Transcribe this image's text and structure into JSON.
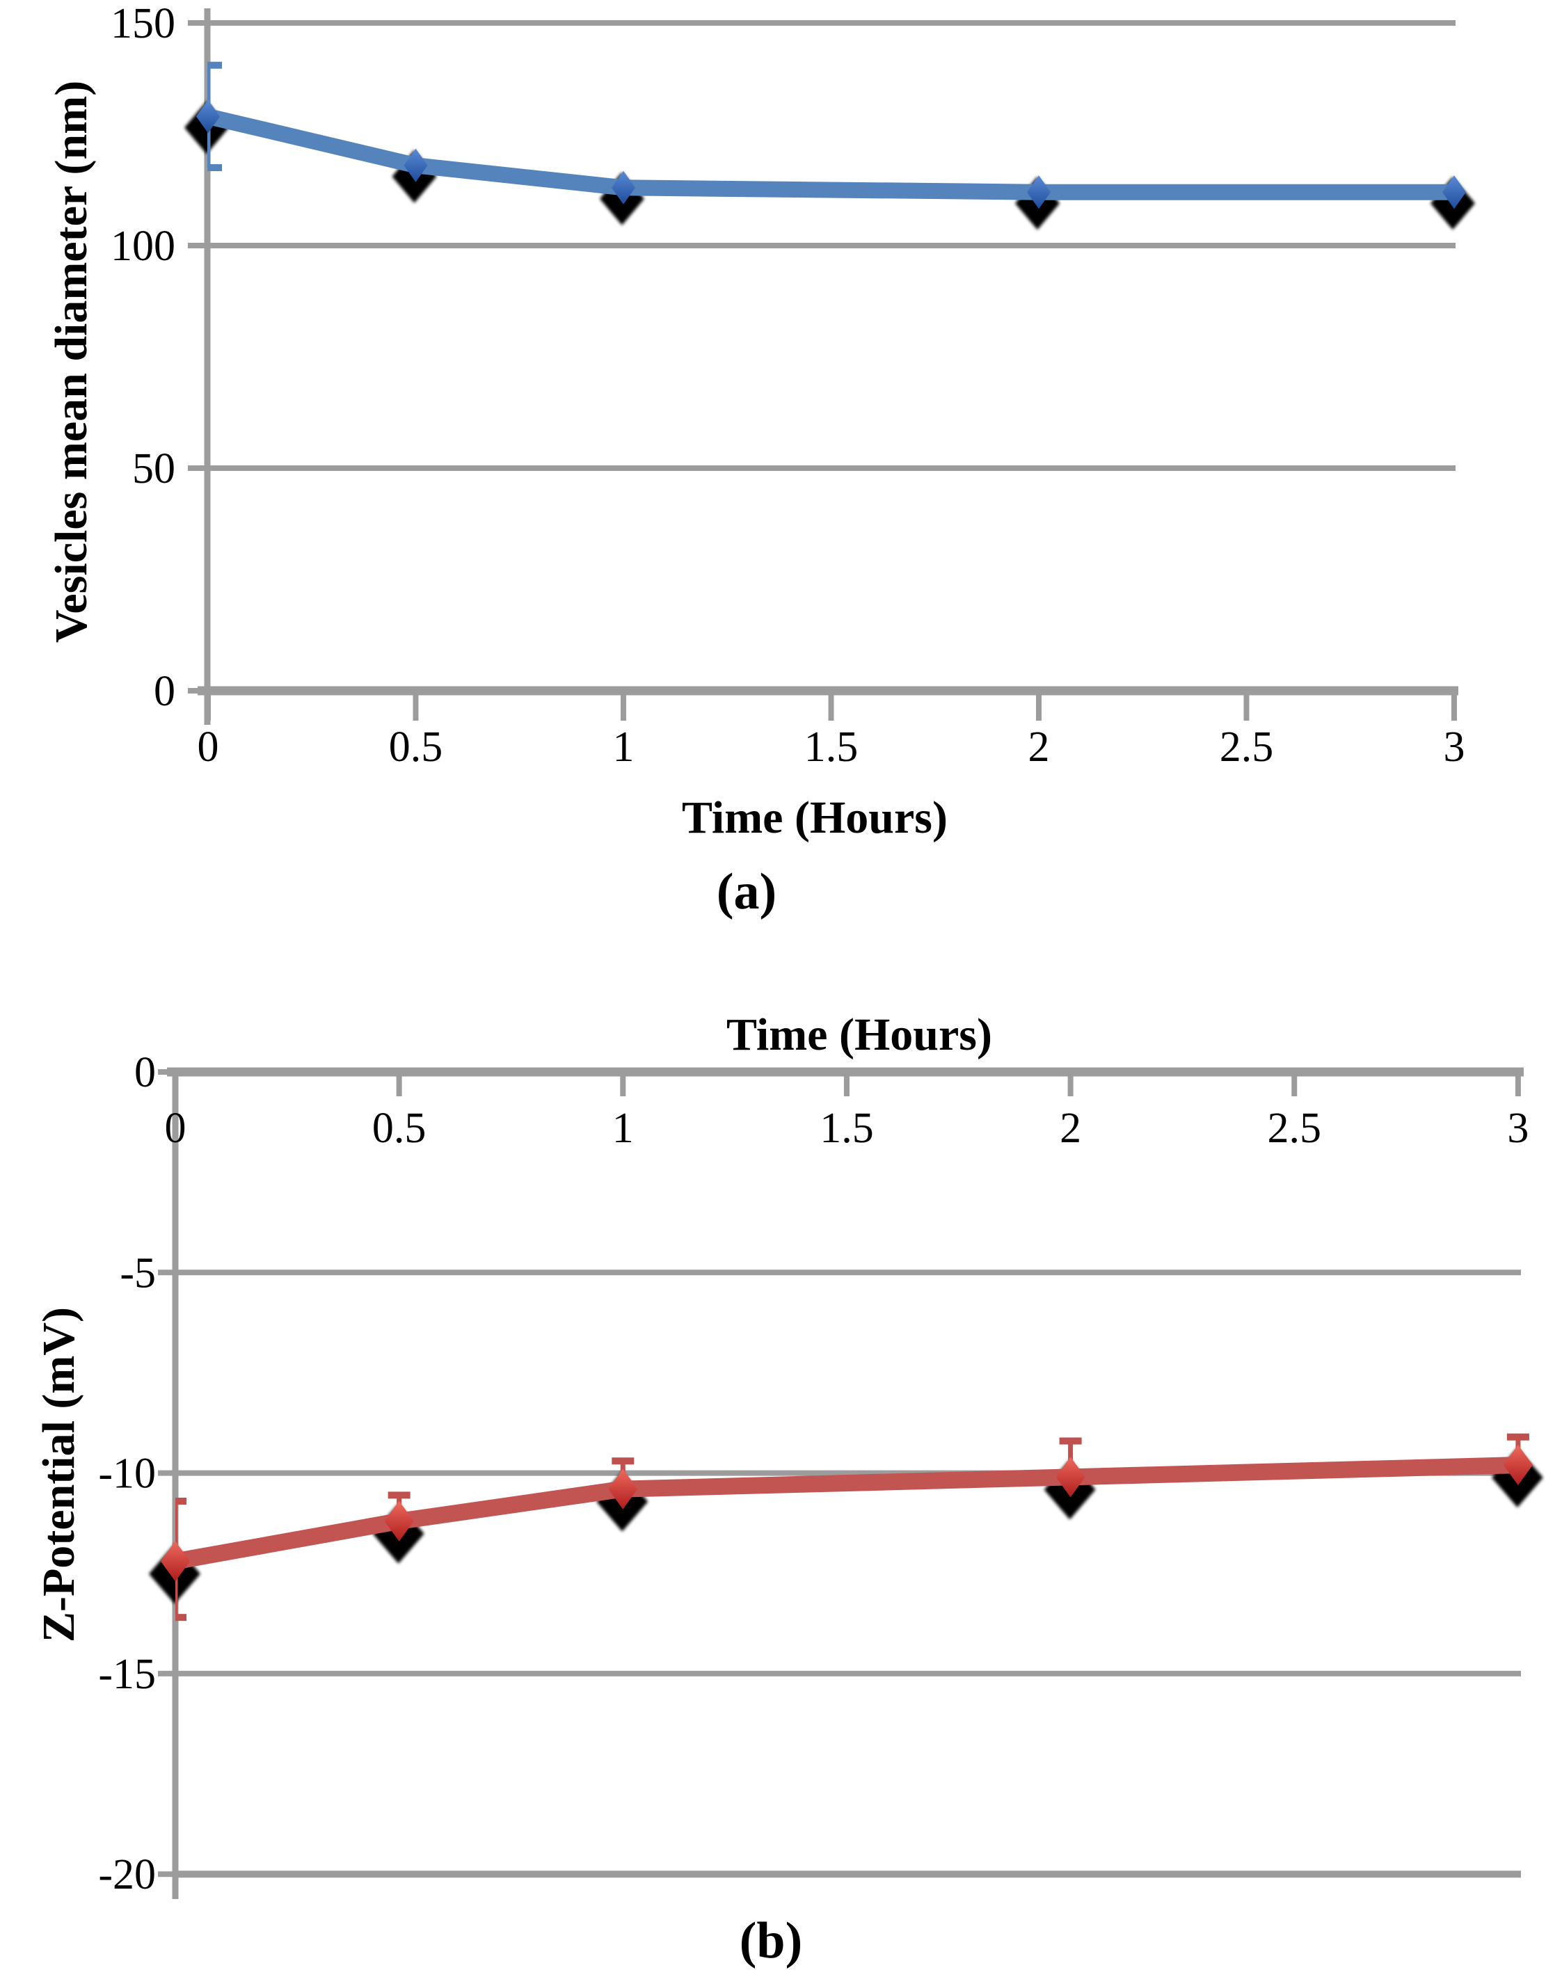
{
  "figure": {
    "background": "#ffffff",
    "axis_color": "#9c9c9c",
    "text_color": "#000000",
    "panels": [
      "a",
      "b"
    ]
  },
  "chart_data": [
    {
      "type": "line",
      "panel_label": "(a)",
      "xlabel": "Time (Hours)",
      "ylabel": "Vesicles mean diameter (nm)",
      "x": [
        0,
        0.5,
        1,
        2,
        3
      ],
      "y": [
        129,
        118,
        113,
        112,
        112
      ],
      "err_up": [
        11.5,
        0,
        0,
        0,
        0
      ],
      "err_dn": [
        11.5,
        0,
        0,
        0,
        0
      ],
      "xlim": [
        0,
        3
      ],
      "ylim": [
        0,
        150
      ],
      "xtick_values": [
        0,
        0.5,
        1,
        1.5,
        2,
        2.5,
        3
      ],
      "xtick_labels": [
        "0",
        "0.5",
        "1",
        "1.5",
        "2",
        "2.5",
        "3"
      ],
      "ytick_values": [
        0,
        50,
        100,
        150
      ],
      "ytick_labels": [
        "0",
        "50",
        "100",
        "150"
      ],
      "grid": true,
      "legend": "none",
      "x_axis_side": "bottom",
      "marker": "diamond",
      "line_color": "#5583bb",
      "marker_gradient_top": "#5b8ad6",
      "marker_gradient_bottom": "#1d4c9b",
      "marker_shadow_color": "#000000",
      "error_color": "#5583bb"
    },
    {
      "type": "line",
      "panel_label": "(b)",
      "xlabel": "Time (Hours)",
      "ylabel": "Z-Potential (mV)",
      "x": [
        0,
        0.5,
        1,
        2,
        3
      ],
      "y": [
        -12.2,
        -11.2,
        -10.4,
        -10.1,
        -9.8
      ],
      "err_up": [
        1.5,
        0.65,
        0.7,
        0.9,
        0.7
      ],
      "err_dn": [
        1.4,
        0,
        0,
        0,
        0
      ],
      "xlim": [
        0,
        3
      ],
      "ylim": [
        -20,
        0
      ],
      "xtick_values": [
        0,
        0.5,
        1,
        1.5,
        2,
        2.5,
        3
      ],
      "xtick_labels": [
        "0",
        "0.5",
        "1",
        "1.5",
        "2",
        "2.5",
        "3"
      ],
      "ytick_values": [
        0,
        -5,
        -10,
        -15,
        -20
      ],
      "ytick_labels": [
        "0",
        "-5",
        "-10",
        "-15",
        "-20"
      ],
      "grid": true,
      "legend": "none",
      "x_axis_side": "top",
      "marker": "diamond",
      "line_color": "#c25552",
      "marker_gradient_top": "#ee6a5e",
      "marker_gradient_bottom": "#ae1c1c",
      "marker_shadow_color": "#000000",
      "error_color": "#c0504d"
    }
  ]
}
